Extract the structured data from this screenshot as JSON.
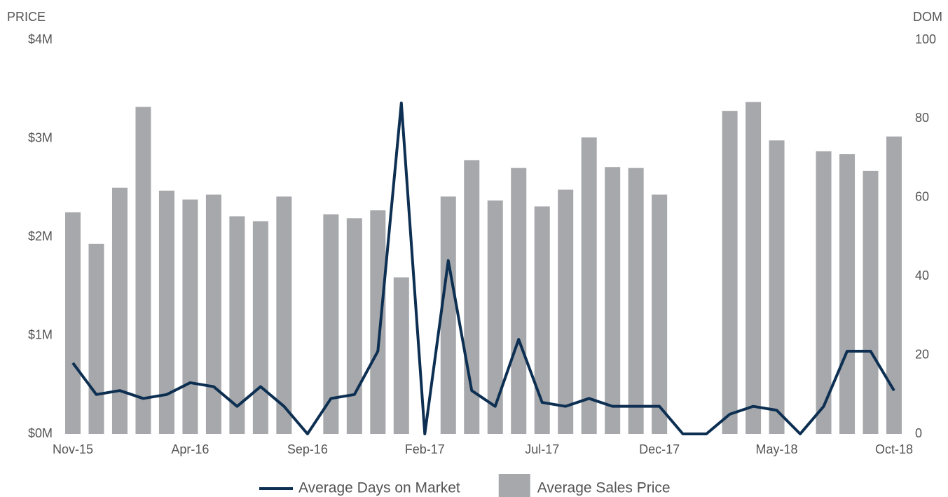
{
  "chart_data": {
    "type": "combo",
    "y_label": "PRICE",
    "y2_label": "DOM",
    "categories": [
      "Nov-15",
      null,
      null,
      null,
      null,
      "Apr-16",
      null,
      null,
      null,
      null,
      "Sep-16",
      null,
      null,
      null,
      null,
      "Feb-17",
      null,
      null,
      null,
      null,
      "Jul-17",
      null,
      null,
      null,
      null,
      "Dec-17",
      null,
      null,
      null,
      null,
      "May-18",
      null,
      null,
      null,
      null,
      "Oct-18"
    ],
    "series": [
      {
        "name": "Average Days on Market",
        "type": "line",
        "axis": "y2",
        "color": "#0d2f52",
        "values": [
          18,
          10,
          11,
          9,
          10,
          13,
          12,
          7,
          12,
          7,
          0,
          9,
          10,
          21,
          84,
          0,
          44,
          11,
          7,
          24,
          8,
          7,
          9,
          7,
          7,
          7,
          0,
          0,
          5,
          7,
          6,
          0,
          7,
          21,
          21,
          11
        ]
      },
      {
        "name": "Average Sales Price",
        "type": "bar",
        "color": "#a6a8ab",
        "values": [
          2250000,
          1930000,
          2500000,
          3320000,
          2470000,
          2380000,
          2430000,
          2210000,
          2160000,
          2410000,
          null,
          2230000,
          2190000,
          2270000,
          1590000,
          null,
          2410000,
          2780000,
          2370000,
          2700000,
          2310000,
          2480000,
          3010000,
          2710000,
          2700000,
          2430000,
          null,
          null,
          3280000,
          3370000,
          2980000,
          null,
          2870000,
          2840000,
          2670000,
          3020000
        ]
      }
    ],
    "ylim": [
      0,
      4000000
    ],
    "yticks": [
      {
        "value": 0,
        "label": "$0M"
      },
      {
        "value": 1000000,
        "label": "$1M"
      },
      {
        "value": 2000000,
        "label": "$2M"
      },
      {
        "value": 3000000,
        "label": "$3M"
      },
      {
        "value": 4000000,
        "label": "$4M"
      }
    ],
    "y2lim": [
      0,
      100
    ],
    "y2ticks": [
      0,
      20,
      40,
      60,
      80,
      100
    ],
    "legend": "bottom"
  }
}
